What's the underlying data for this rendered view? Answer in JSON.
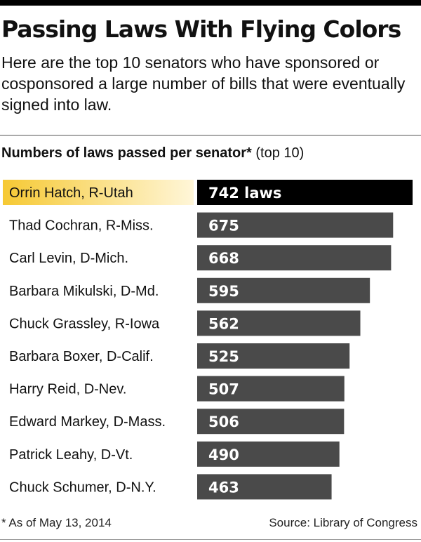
{
  "header": {
    "title": "Passing Laws With Flying Colors",
    "subtitle": "Here are the top 10 senators who have sponsored or cosponsored a large number of bills that were eventually signed into law."
  },
  "chart_heading": {
    "bold": "Numbers of laws passed per senator*",
    "normal": " (top 10)"
  },
  "footer": {
    "footnote": "* As of May 13, 2014",
    "source": "Source: Library of Congress"
  },
  "colors": {
    "highlight_bar": "#000000",
    "bar": "#4a4a4a",
    "highlight_label_from": "#f6c934",
    "highlight_label_to": "#fff6d8",
    "bar_text": "#ffffff"
  },
  "chart_data": {
    "type": "bar",
    "orientation": "horizontal",
    "categories": [
      "Orrin Hatch, R-Utah",
      "Thad Cochran, R-Miss.",
      "Carl Levin, D-Mich.",
      "Barbara Mikulski, D-Md.",
      "Chuck Grassley, R-Iowa",
      "Barbara Boxer, D-Calif.",
      "Harry Reid, D-Nev.",
      "Edward Markey, D-Mass.",
      "Patrick Leahy, D-Vt.",
      "Chuck Schumer, D-N.Y."
    ],
    "values": [
      742,
      675,
      668,
      595,
      562,
      525,
      507,
      506,
      490,
      463
    ],
    "data_labels": [
      "742 laws",
      "675",
      "668",
      "595",
      "562",
      "525",
      "507",
      "506",
      "490",
      "463"
    ],
    "highlight_index": 0,
    "xlim": [
      0,
      742
    ]
  }
}
